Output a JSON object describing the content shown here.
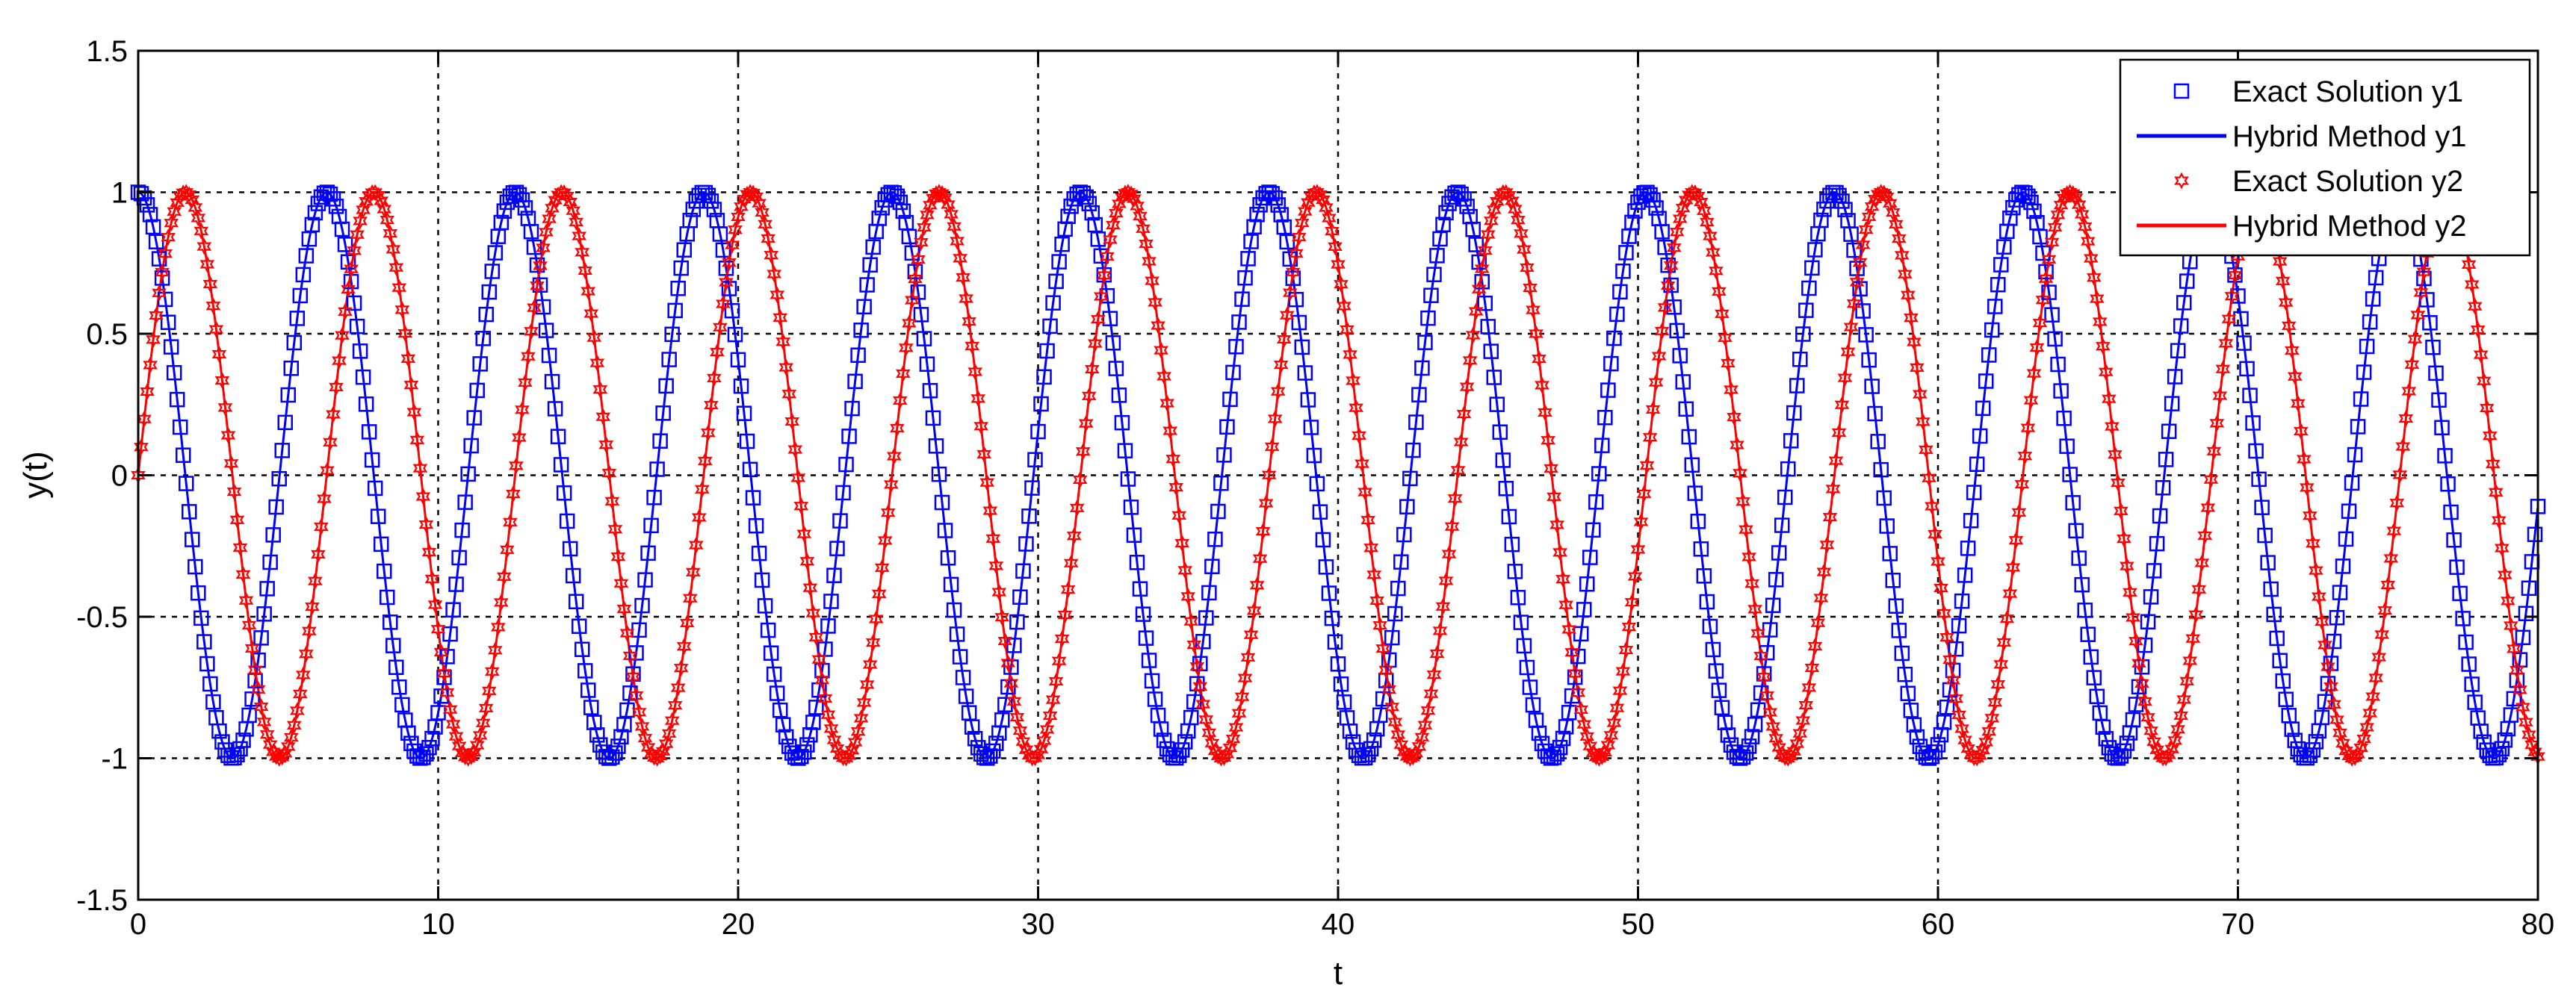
{
  "chart_data": {
    "type": "line",
    "title": "",
    "xlabel": "t",
    "ylabel": "y(t)",
    "xlim": [
      0,
      80
    ],
    "ylim": [
      -1.5,
      1.5
    ],
    "x_ticks": [
      0,
      10,
      20,
      30,
      40,
      50,
      60,
      70,
      80
    ],
    "y_ticks": [
      -1.5,
      -1,
      -0.5,
      0,
      0.5,
      1,
      1.5
    ],
    "x_tick_labels": [
      "0",
      "10",
      "20",
      "30",
      "40",
      "50",
      "60",
      "70",
      "80"
    ],
    "y_tick_labels": [
      "-1.5",
      "-1",
      "-0.5",
      "0",
      "0.5",
      "1",
      "1.5"
    ],
    "grid": true,
    "legend_position": "top-right",
    "legend": [
      {
        "label": "Exact Solution y1",
        "color": "#0000ff",
        "style": "square-marker"
      },
      {
        "label": "Hybrid Method y1",
        "color": "#0000ff",
        "style": "line"
      },
      {
        "label": "Exact Solution y2",
        "color": "#ff0000",
        "style": "hexagram-marker"
      },
      {
        "label": "Hybrid Method y2",
        "color": "#ff0000",
        "style": "line"
      }
    ],
    "series": [
      {
        "name": "Exact Solution y1",
        "function": "cos(t)",
        "color": "#0000ff",
        "marker": "square",
        "t_step": 0.1
      },
      {
        "name": "Hybrid Method y1",
        "function": "cos(t)",
        "color": "#0000ff",
        "marker": "none"
      },
      {
        "name": "Exact Solution y2",
        "function": "sin(t)",
        "color": "#ff0000",
        "marker": "hexagram",
        "t_step": 0.1
      },
      {
        "name": "Hybrid Method y2",
        "function": "sin(t)",
        "color": "#ff0000",
        "marker": "none"
      }
    ]
  }
}
